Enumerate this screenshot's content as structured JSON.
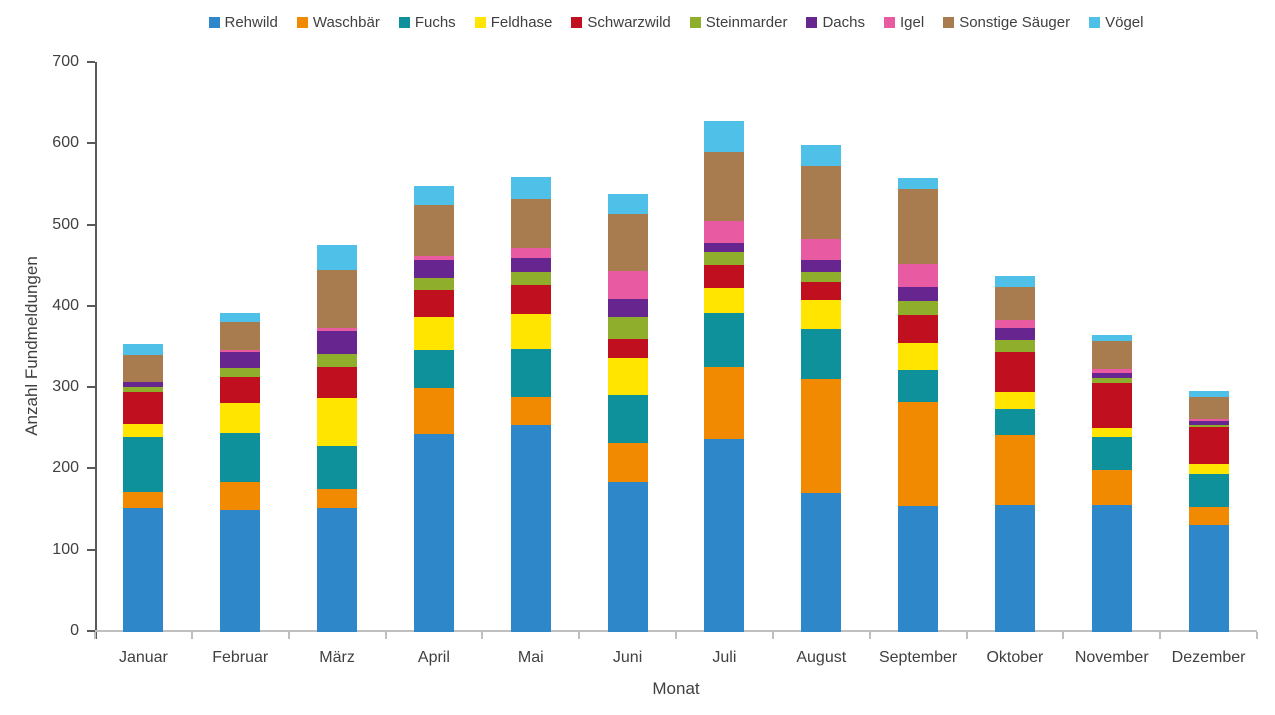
{
  "chart_data": {
    "type": "bar",
    "stacked": true,
    "title": "",
    "xlabel": "Monat",
    "ylabel": "Anzahl Fundmeldungen",
    "ylim": [
      0,
      700
    ],
    "ytick_step": 100,
    "grid": false,
    "legend_position": "top",
    "categories": [
      "Januar",
      "Februar",
      "März",
      "April",
      "Mai",
      "Juni",
      "Juli",
      "August",
      "September",
      "Oktober",
      "November",
      "Dezember"
    ],
    "series": [
      {
        "name": "Rehwild",
        "color": "#2E87C8",
        "values": [
          153,
          150,
          153,
          243,
          255,
          185,
          237,
          171,
          155,
          156,
          156,
          132
        ]
      },
      {
        "name": "Waschbär",
        "color": "#F18A00",
        "values": [
          19,
          35,
          23,
          57,
          34,
          48,
          89,
          140,
          128,
          86,
          43,
          22
        ]
      },
      {
        "name": "Fuchs",
        "color": "#0E919B",
        "values": [
          68,
          60,
          53,
          47,
          59,
          59,
          67,
          62,
          39,
          32,
          41,
          41
        ]
      },
      {
        "name": "Feldhase",
        "color": "#FFE500",
        "values": [
          16,
          37,
          59,
          41,
          43,
          45,
          30,
          35,
          33,
          21,
          11,
          12
        ]
      },
      {
        "name": "Schwarzwild",
        "color": "#C00F1E",
        "values": [
          39,
          32,
          38,
          33,
          36,
          23,
          29,
          23,
          35,
          49,
          55,
          45
        ]
      },
      {
        "name": "Steinmarder",
        "color": "#8FAE2B",
        "values": [
          7,
          11,
          16,
          14,
          16,
          27,
          15,
          12,
          17,
          15,
          6,
          3
        ]
      },
      {
        "name": "Dachs",
        "color": "#66258F",
        "values": [
          6,
          19,
          28,
          23,
          17,
          23,
          12,
          15,
          17,
          15,
          7,
          4
        ]
      },
      {
        "name": "Igel",
        "color": "#E85BA2",
        "values": [
          0,
          3,
          4,
          4,
          13,
          34,
          27,
          25,
          29,
          10,
          5,
          3
        ]
      },
      {
        "name": "Sonstige Säuger",
        "color": "#A87C4F",
        "values": [
          33,
          34,
          71,
          63,
          60,
          70,
          85,
          90,
          92,
          41,
          34,
          27
        ]
      },
      {
        "name": "Vögel",
        "color": "#4FC0E8",
        "values": [
          13,
          12,
          31,
          24,
          27,
          25,
          38,
          26,
          14,
          13,
          7,
          7
        ]
      }
    ],
    "axis_colors": {
      "y_axis": "#595959",
      "x_axis": "#BFBFBF",
      "labels": "#404040"
    }
  }
}
